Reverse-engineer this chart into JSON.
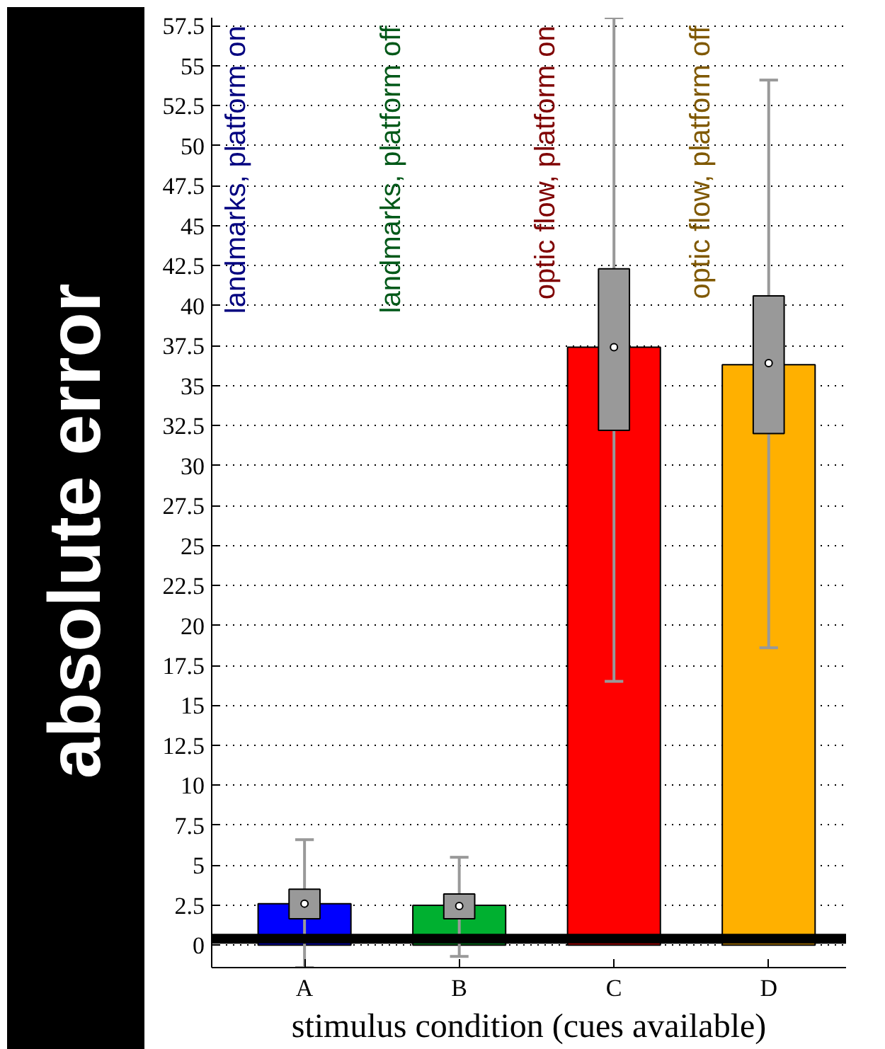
{
  "chart_data": {
    "type": "bar",
    "xlabel": "stimulus condition (cues available)",
    "ylabel": "absolute error",
    "categories": [
      "A",
      "B",
      "C",
      "D"
    ],
    "series": [
      {
        "colors": [
          "#0000ff",
          "#00b030",
          "#ff0000",
          "#ffb000"
        ],
        "values": [
          2.6,
          2.5,
          37.4,
          36.3
        ]
      },
      {
        "type": "box",
        "color": "#999999",
        "boxes": [
          {
            "low": -1.4,
            "q1": 1.65,
            "median": 2.6,
            "q3": 3.5,
            "high": 6.6
          },
          {
            "low": -0.7,
            "q1": 1.65,
            "median": 2.45,
            "q3": 3.2,
            "high": 5.5
          },
          {
            "low": 16.5,
            "q1": 32.2,
            "median": 37.4,
            "q3": 42.3,
            "high": 58
          },
          {
            "low": 18.6,
            "q1": 32.0,
            "median": 36.4,
            "q3": 40.6,
            "high": 54.1
          }
        ]
      }
    ],
    "annotations": [
      "landmarks, platform on",
      "landmarks, platform off",
      "optic flow, platform on",
      "optic flow, platform off"
    ],
    "ylim": [
      -1.4,
      58
    ],
    "yticks": [
      0,
      2.5,
      5,
      7.5,
      10,
      12.5,
      15,
      17.5,
      20,
      22.5,
      25,
      27.5,
      30,
      32.5,
      35,
      37.5,
      40,
      42.5,
      45,
      47.5,
      50,
      52.5,
      55,
      57.5
    ],
    "ref_lines": [
      {
        "axis": "y",
        "value": 0.4,
        "color": "#000000"
      }
    ],
    "grid": "y"
  }
}
